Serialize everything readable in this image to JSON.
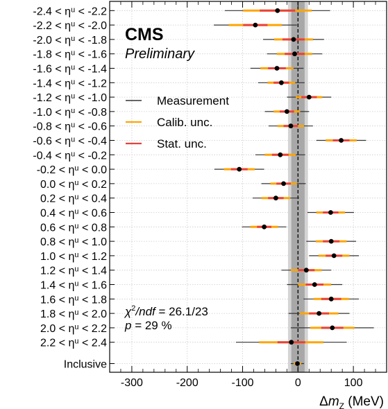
{
  "chart_data": {
    "type": "scatter",
    "title": "CMS",
    "subtitle": "Preliminary",
    "xlabel": "Δm_Z (MeV)",
    "xlim": [
      -340,
      160
    ],
    "xticks": [
      -300,
      -200,
      -100,
      0,
      100
    ],
    "grid": true,
    "legend_position": "upper-left",
    "legend": [
      {
        "name": "Measurement",
        "color": "#333333"
      },
      {
        "name": "Calib. unc.",
        "color": "#ffa500"
      },
      {
        "name": "Stat. unc.",
        "color": "#e8413c"
      }
    ],
    "band": {
      "inner": [
        -12,
        12
      ],
      "outer": [
        -18,
        18
      ]
    },
    "reference_line": 0,
    "annotations": [
      "χ²/ndf = 26.1/23",
      "p = 29 %"
    ],
    "categories": [
      "-2.4 < ηᵘ < -2.2",
      "-2.2 < ηᵘ < -2.0",
      "-2.0 < ηᵘ < -1.8",
      "-1.8 < ηᵘ < -1.6",
      "-1.6 < ηᵘ < -1.4",
      "-1.4 < ηᵘ < -1.2",
      "-1.2 < ηᵘ < -1.0",
      "-1.0 < ηᵘ < -0.8",
      "-0.8 < ηᵘ < -0.6",
      "-0.6 < ηᵘ < -0.4",
      "-0.4 < ηᵘ < -0.2",
      "-0.2 < ηᵘ < 0.0",
      "0.0 < ηᵘ < 0.2",
      "0.2 < ηᵘ < 0.4",
      "0.4 < ηᵘ < 0.6",
      "0.6 < ηᵘ < 0.8",
      "0.8 < ηᵘ < 1.0",
      "1.0 < ηᵘ < 1.2",
      "1.2 < ηᵘ < 1.4",
      "1.4 < ηᵘ < 1.6",
      "1.6 < ηᵘ < 1.8",
      "1.8 < ηᵘ < 2.0",
      "2.0 < ηᵘ < 2.2",
      "2.2 < ηᵘ < 2.4",
      "Inclusive"
    ],
    "points": [
      {
        "value": -37,
        "total": 95,
        "calib": 62,
        "stat": 32
      },
      {
        "value": -77,
        "total": 75,
        "calib": 48,
        "stat": 22
      },
      {
        "value": -8,
        "total": 55,
        "calib": 35,
        "stat": 20
      },
      {
        "value": -6,
        "total": 50,
        "calib": 32,
        "stat": 18
      },
      {
        "value": -38,
        "total": 48,
        "calib": 30,
        "stat": 16
      },
      {
        "value": -30,
        "total": 42,
        "calib": 25,
        "stat": 14
      },
      {
        "value": 20,
        "total": 40,
        "calib": 24,
        "stat": 14
      },
      {
        "value": -20,
        "total": 40,
        "calib": 24,
        "stat": 13
      },
      {
        "value": -13,
        "total": 40,
        "calib": 24,
        "stat": 13
      },
      {
        "value": 78,
        "total": 45,
        "calib": 28,
        "stat": 15
      },
      {
        "value": -32,
        "total": 45,
        "calib": 28,
        "stat": 15
      },
      {
        "value": -106,
        "total": 45,
        "calib": 28,
        "stat": 15
      },
      {
        "value": -26,
        "total": 40,
        "calib": 24,
        "stat": 13
      },
      {
        "value": -40,
        "total": 42,
        "calib": 26,
        "stat": 14
      },
      {
        "value": 59,
        "total": 42,
        "calib": 26,
        "stat": 14
      },
      {
        "value": -61,
        "total": 40,
        "calib": 25,
        "stat": 13
      },
      {
        "value": 60,
        "total": 45,
        "calib": 28,
        "stat": 15
      },
      {
        "value": 65,
        "total": 45,
        "calib": 28,
        "stat": 15
      },
      {
        "value": 15,
        "total": 45,
        "calib": 28,
        "stat": 15
      },
      {
        "value": 30,
        "total": 50,
        "calib": 30,
        "stat": 16
      },
      {
        "value": 60,
        "total": 50,
        "calib": 32,
        "stat": 18
      },
      {
        "value": 38,
        "total": 55,
        "calib": 35,
        "stat": 18
      },
      {
        "value": 62,
        "total": 75,
        "calib": 40,
        "stat": 20
      },
      {
        "value": -12,
        "total": 100,
        "calib": 58,
        "stat": 25
      },
      {
        "value": -1,
        "total": 12,
        "calib": 7,
        "stat": 3
      }
    ]
  }
}
